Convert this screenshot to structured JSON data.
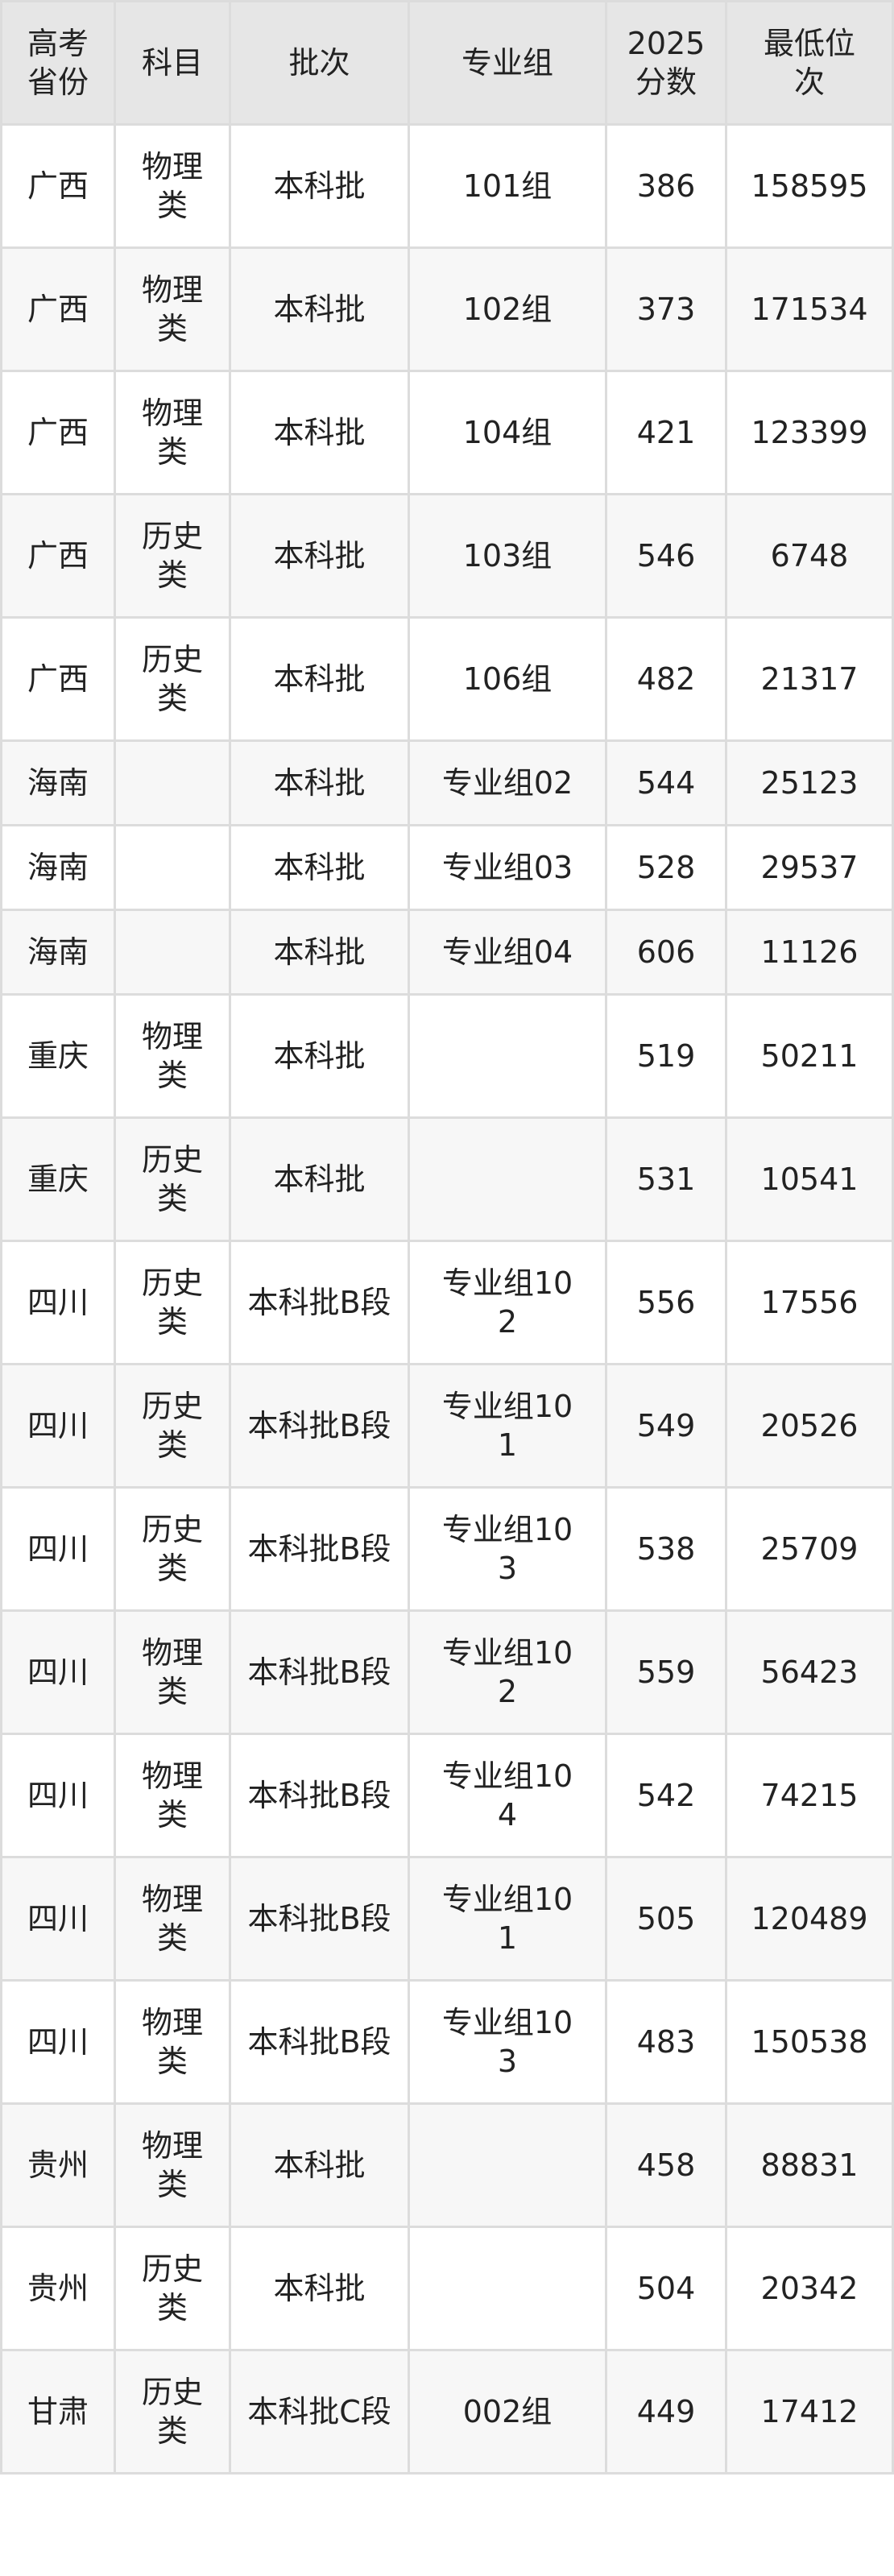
{
  "table": {
    "headers": [
      "高考省份",
      "科目",
      "批次",
      "专业组",
      "2025分数",
      "最低位次"
    ],
    "rows": [
      [
        "广西",
        "物理类",
        "本科批",
        "101组",
        "386",
        "158595"
      ],
      [
        "广西",
        "物理类",
        "本科批",
        "102组",
        "373",
        "171534"
      ],
      [
        "广西",
        "物理类",
        "本科批",
        "104组",
        "421",
        "123399"
      ],
      [
        "广西",
        "历史类",
        "本科批",
        "103组",
        "546",
        "6748"
      ],
      [
        "广西",
        "历史类",
        "本科批",
        "106组",
        "482",
        "21317"
      ],
      [
        "海南",
        "",
        "本科批",
        "专业组02",
        "544",
        "25123"
      ],
      [
        "海南",
        "",
        "本科批",
        "专业组03",
        "528",
        "29537"
      ],
      [
        "海南",
        "",
        "本科批",
        "专业组04",
        "606",
        "11126"
      ],
      [
        "重庆",
        "物理类",
        "本科批",
        "",
        "519",
        "50211"
      ],
      [
        "重庆",
        "历史类",
        "本科批",
        "",
        "531",
        "10541"
      ],
      [
        "四川",
        "历史类",
        "本科批B段",
        "专业组102",
        "556",
        "17556"
      ],
      [
        "四川",
        "历史类",
        "本科批B段",
        "专业组101",
        "549",
        "20526"
      ],
      [
        "四川",
        "历史类",
        "本科批B段",
        "专业组103",
        "538",
        "25709"
      ],
      [
        "四川",
        "物理类",
        "本科批B段",
        "专业组102",
        "559",
        "56423"
      ],
      [
        "四川",
        "物理类",
        "本科批B段",
        "专业组104",
        "542",
        "74215"
      ],
      [
        "四川",
        "物理类",
        "本科批B段",
        "专业组101",
        "505",
        "120489"
      ],
      [
        "四川",
        "物理类",
        "本科批B段",
        "专业组103",
        "483",
        "150538"
      ],
      [
        "贵州",
        "物理类",
        "本科批",
        "",
        "458",
        "88831"
      ],
      [
        "贵州",
        "历史类",
        "本科批",
        "",
        "504",
        "20342"
      ],
      [
        "甘肃",
        "历史类",
        "本科批C段",
        "002组",
        "449",
        "17412"
      ]
    ]
  }
}
